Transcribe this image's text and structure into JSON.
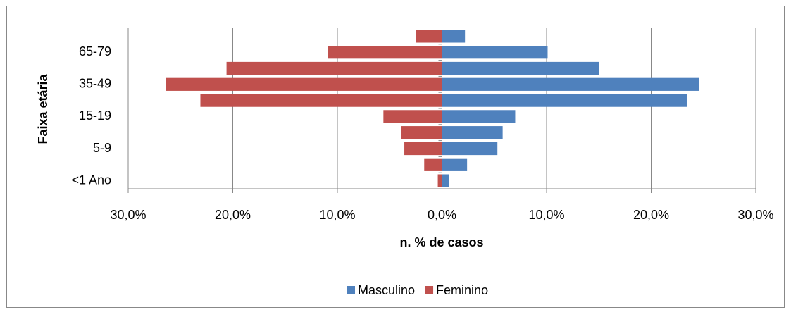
{
  "chart_data": {
    "type": "bar",
    "orientation": "horizontal",
    "stacked": true,
    "ylabel": "Faixa etária",
    "xlabel": "n. % de casos",
    "categories": [
      "<1 Ano",
      null,
      "5-9",
      null,
      "15-19",
      null,
      "35-49",
      null,
      "65-79",
      null
    ],
    "series": [
      {
        "name": "Masculino",
        "color": "#4f81bd",
        "values": [
          0.7,
          2.4,
          5.3,
          5.8,
          7.0,
          23.4,
          24.6,
          15.0,
          10.1,
          2.2
        ]
      },
      {
        "name": "Feminino",
        "color": "#c0504d",
        "values": [
          -0.4,
          -1.7,
          -3.6,
          -3.9,
          -5.6,
          -23.1,
          -26.4,
          -20.6,
          -10.9,
          -2.5
        ]
      }
    ],
    "xlim": [
      -30,
      30
    ],
    "xticks": [
      {
        "value": -30,
        "label": "30,0%"
      },
      {
        "value": -20,
        "label": "20,0%"
      },
      {
        "value": -10,
        "label": "10,0%"
      },
      {
        "value": 0,
        "label": "0,0%"
      },
      {
        "value": 10,
        "label": "10,0%"
      },
      {
        "value": 20,
        "label": "20,0%"
      },
      {
        "value": 30,
        "label": "30,0%"
      }
    ],
    "grid": true,
    "legend": "bottom"
  }
}
